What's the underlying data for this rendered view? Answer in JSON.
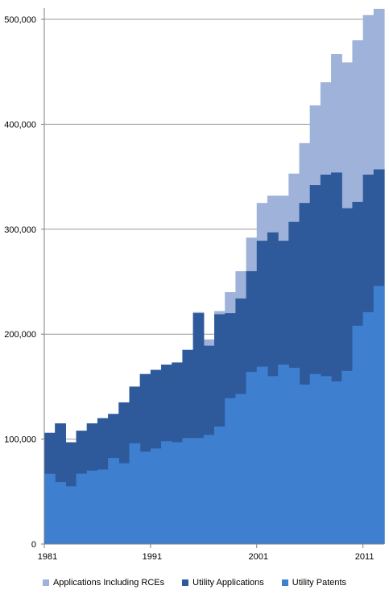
{
  "chart_data": {
    "type": "area",
    "title": "",
    "xlabel": "",
    "ylabel": "",
    "stacked": false,
    "step": true,
    "x": [
      1981,
      1982,
      1983,
      1984,
      1985,
      1986,
      1987,
      1988,
      1989,
      1990,
      1991,
      1992,
      1993,
      1994,
      1995,
      1996,
      1997,
      1998,
      1999,
      2000,
      2001,
      2002,
      2003,
      2004,
      2005,
      2006,
      2007,
      2008,
      2009,
      2010,
      2011,
      2012
    ],
    "x_tick_labels": [
      "1981",
      "1991",
      "2001",
      "2011"
    ],
    "y_tick_labels": [
      "0",
      "100,000",
      "200,000",
      "300,000",
      "400,000",
      "500,000"
    ],
    "ylim": [
      0,
      500000
    ],
    "grid": true,
    "legend_position": "bottom",
    "series": [
      {
        "name": "Applications Including RCEs",
        "color": "#9fb2d9",
        "values": [
          106000,
          115000,
          97000,
          108000,
          115000,
          120000,
          124000,
          135000,
          150000,
          162000,
          166000,
          171000,
          173000,
          185000,
          221000,
          195000,
          222000,
          240000,
          260000,
          292000,
          325000,
          332000,
          332000,
          353000,
          382000,
          418000,
          440000,
          467000,
          459000,
          480000,
          504000,
          510000
        ]
      },
      {
        "name": "Utility Applications",
        "color": "#2e5a9c",
        "values": [
          106000,
          115000,
          97000,
          108000,
          115000,
          120000,
          124000,
          135000,
          150000,
          162000,
          166000,
          171000,
          173000,
          185000,
          220000,
          189000,
          219000,
          220000,
          234000,
          260000,
          289000,
          297000,
          289000,
          307000,
          325000,
          342000,
          352000,
          354000,
          320000,
          326000,
          352000,
          357000
        ]
      },
      {
        "name": "Utility Patents",
        "color": "#3e7fd0",
        "values": [
          67000,
          59000,
          55000,
          67000,
          70000,
          71000,
          82000,
          77000,
          96000,
          88000,
          91000,
          98000,
          97000,
          101000,
          101000,
          104000,
          112000,
          139000,
          143000,
          164000,
          169000,
          160000,
          171000,
          168000,
          152000,
          162000,
          160000,
          155000,
          165000,
          208000,
          221000,
          246000
        ]
      }
    ]
  }
}
